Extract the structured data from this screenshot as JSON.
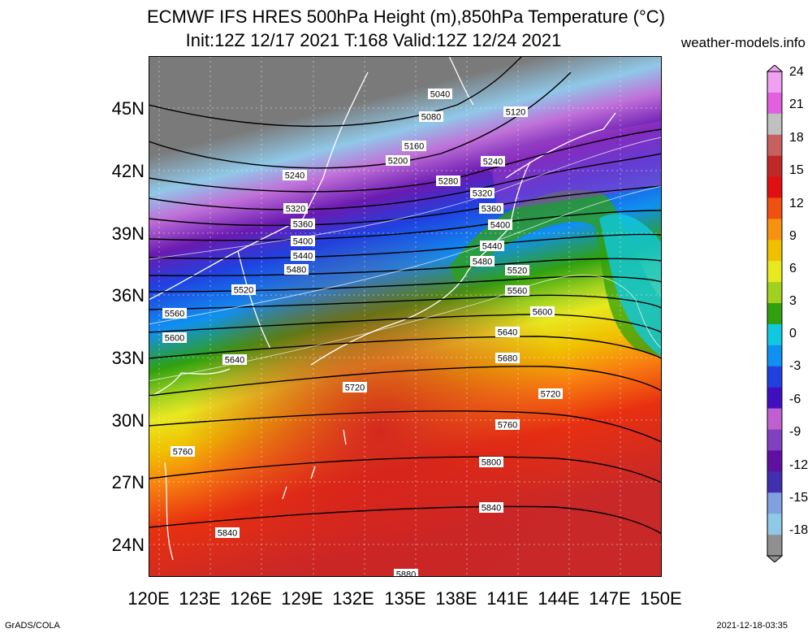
{
  "title": {
    "line1": "ECMWF IFS HRES 500hPa Height (m),850hPa Temperature (°C)",
    "line2": "Init:12Z 12/17 2021 T:168 Valid:12Z 12/24 2021"
  },
  "site": "weather-models.info",
  "footer": {
    "left": "GrADS/COLA",
    "right": "2021-12-18-03:35"
  },
  "axes": {
    "lat_labels": [
      "45N",
      "42N",
      "39N",
      "36N",
      "33N",
      "30N",
      "27N",
      "24N"
    ],
    "lon_labels": [
      "120E",
      "123E",
      "126E",
      "129E",
      "132E",
      "135E",
      "138E",
      "141E",
      "144E",
      "147E",
      "150E"
    ]
  },
  "colorbar": {
    "labels": [
      "24",
      "21",
      "18",
      "15",
      "12",
      "9",
      "6",
      "3",
      "0",
      "-3",
      "-6",
      "-9",
      "-12",
      "-15",
      "-18"
    ],
    "colors": [
      "#f0a0f0",
      "#e060e0",
      "#c0c0c0",
      "#c86060",
      "#c02828",
      "#e01010",
      "#f05010",
      "#f89010",
      "#f0c000",
      "#e8e820",
      "#a0d020",
      "#30a010",
      "#10c8e0",
      "#1090f0",
      "#2040e0",
      "#4010c0",
      "#c060d0",
      "#8040c0",
      "#6010a0",
      "#4030b0",
      "#80a0e0",
      "#90c8e8",
      "#909090"
    ]
  },
  "contours": {
    "labels": [
      "5040",
      "5080",
      "5120",
      "5160",
      "5200",
      "5240",
      "5240",
      "5280",
      "5320",
      "5320",
      "5360",
      "5360",
      "5400",
      "5400",
      "5440",
      "5440",
      "5480",
      "5480",
      "5520",
      "5520",
      "5560",
      "5560",
      "5600",
      "5600",
      "5640",
      "5640",
      "5680",
      "5720",
      "5720",
      "5760",
      "5760",
      "5800",
      "5840",
      "5840",
      "5880"
    ]
  }
}
